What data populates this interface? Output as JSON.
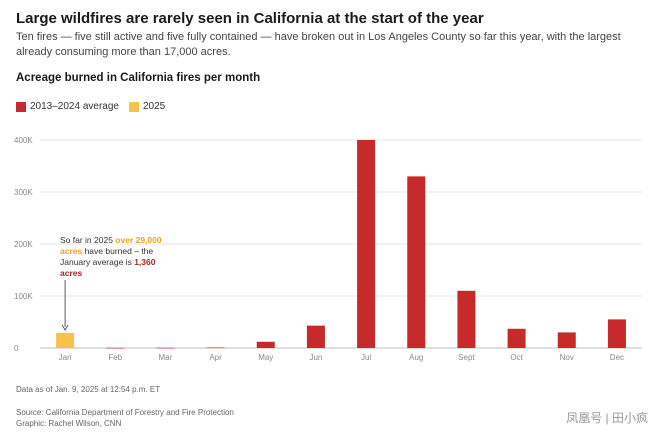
{
  "header": {
    "title": "Large wildfires are rarely seen in California at the start of the year",
    "subtitle": "Ten fires — five still active and five fully contained — have broken out in Los Angeles County so far this year, with the largest already consuming more than 17,000 acres."
  },
  "colors": {
    "average": "#c62a2a",
    "current": "#f6c24c",
    "grid": "#e6e6e6",
    "tick": "#8a8a8a"
  },
  "annotation": {
    "part1": "So far in 2025 ",
    "highlight1": "over 29,000 acres",
    "part2": " have burned – the January average is ",
    "highlight2": "1,360 acres"
  },
  "footer": {
    "note": "Data as of Jan. 9, 2025 at 12:54 p.m. ET",
    "source": "Source: California Department of Forestry and Fire Protection",
    "credit": "Graphic: Rachel Wilson, CNN",
    "watermark": "凤凰号 | 田小疯"
  },
  "chart_data": {
    "type": "bar",
    "title": "Acreage burned in California fires per month",
    "categories": [
      "Jan",
      "Feb",
      "Mar",
      "Apr",
      "May",
      "Jun",
      "Jul",
      "Aug",
      "Sept",
      "Oct",
      "Nov",
      "Dec"
    ],
    "series": [
      {
        "name": "2013–2024 average",
        "values": [
          1360,
          300,
          400,
          1000,
          12000,
          43000,
          400000,
          330000,
          110000,
          37000,
          30000,
          55000
        ]
      },
      {
        "name": "2025",
        "values": [
          29000,
          null,
          null,
          null,
          null,
          null,
          null,
          null,
          null,
          null,
          null,
          null
        ]
      }
    ],
    "y_ticks": [
      {
        "value": 0,
        "label": "0"
      },
      {
        "value": 100000,
        "label": "100K"
      },
      {
        "value": 200000,
        "label": "200K"
      },
      {
        "value": 300000,
        "label": "300K"
      },
      {
        "value": 400000,
        "label": "400K"
      }
    ],
    "ylim": [
      0,
      400000
    ],
    "grid": true,
    "legend_position": "top-left"
  }
}
